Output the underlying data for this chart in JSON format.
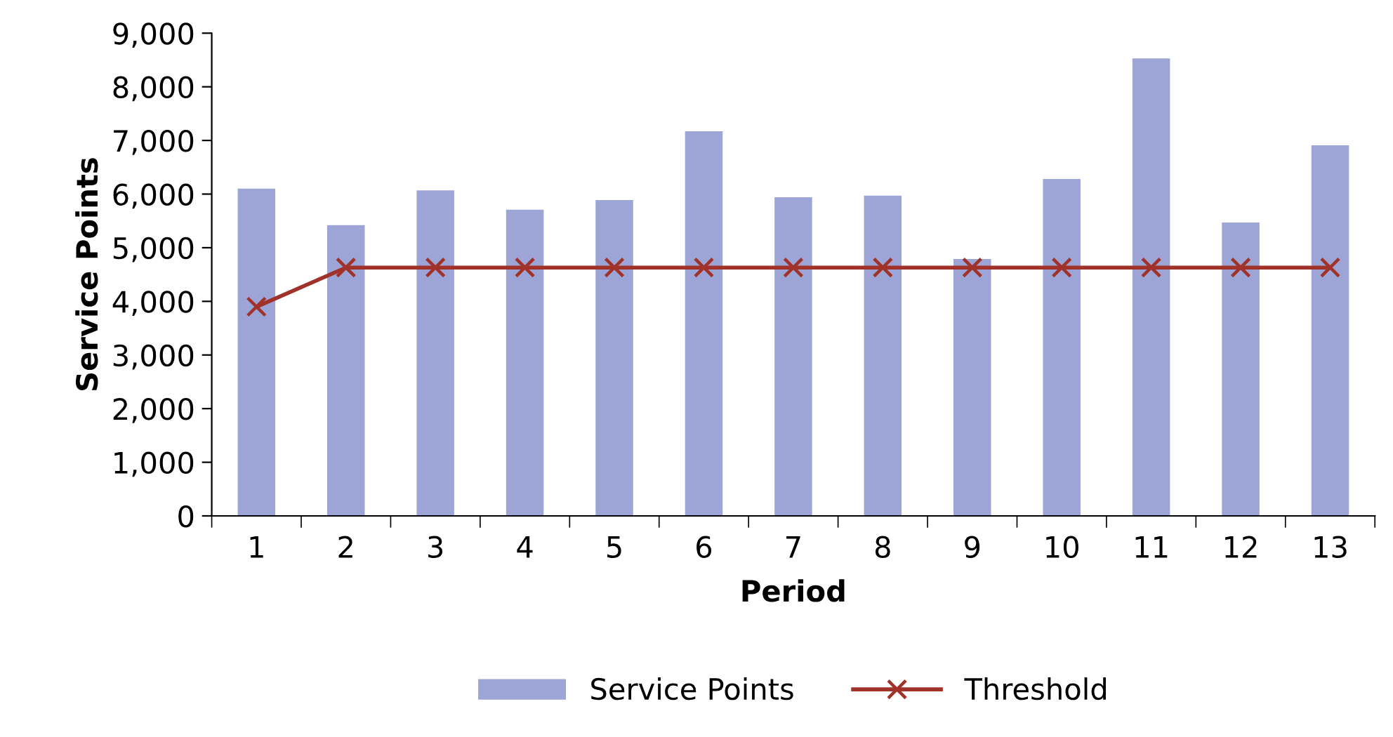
{
  "chart_data": {
    "type": "bar",
    "xlabel": "Period",
    "ylabel": "Service Points",
    "categories": [
      "1",
      "2",
      "3",
      "4",
      "5",
      "6",
      "7",
      "8",
      "9",
      "10",
      "11",
      "12",
      "13"
    ],
    "series": [
      {
        "name": "Service Points",
        "color": "#9da5d6",
        "values": [
          6100,
          5420,
          6070,
          5710,
          5890,
          7170,
          5940,
          5970,
          4790,
          6280,
          8530,
          5470,
          6910
        ]
      },
      {
        "name": "Threshold",
        "type": "line",
        "color": "#a0322a",
        "marker": "cross",
        "values": [
          3900,
          4630,
          4630,
          4630,
          4630,
          4630,
          4630,
          4630,
          4630,
          4630,
          4630,
          4630,
          4630
        ]
      }
    ],
    "ylim": [
      0,
      9000
    ],
    "yticks": [
      {
        "value": 0,
        "label": "0"
      },
      {
        "value": 1000,
        "label": "1,000"
      },
      {
        "value": 2000,
        "label": "2,000"
      },
      {
        "value": 3000,
        "label": "3,000"
      },
      {
        "value": 4000,
        "label": "4,000"
      },
      {
        "value": 5000,
        "label": "5,000"
      },
      {
        "value": 6000,
        "label": "6,000"
      },
      {
        "value": 7000,
        "label": "7,000"
      },
      {
        "value": 8000,
        "label": "8,000"
      },
      {
        "value": 9000,
        "label": "9,000"
      }
    ],
    "grid": false,
    "legend": "bottom"
  }
}
